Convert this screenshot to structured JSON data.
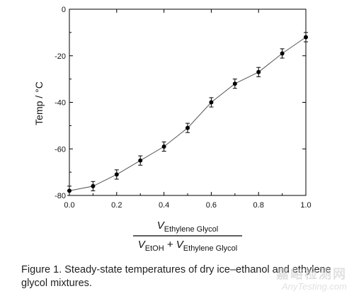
{
  "chart_data": {
    "type": "line",
    "ylabel": "Temp / °C",
    "xlabel_fraction": {
      "numerator": {
        "var": "V",
        "sub": "Ethylene Glycol"
      },
      "denominator": [
        {
          "var": "V",
          "sub": "EtOH"
        },
        {
          "op": "+"
        },
        {
          "var": "V",
          "sub": "Ethylene Glycol"
        }
      ]
    },
    "xlim": [
      0.0,
      1.0
    ],
    "ylim": [
      -80,
      0
    ],
    "xticks": [
      "0.0",
      "0.2",
      "0.4",
      "0.6",
      "0.8",
      "1.0"
    ],
    "yticks": [
      "0",
      "-20",
      "-40",
      "-60",
      "-80"
    ],
    "x": [
      0.0,
      0.1,
      0.2,
      0.3,
      0.4,
      0.5,
      0.6,
      0.7,
      0.8,
      0.9,
      1.0
    ],
    "y": [
      -78,
      -76,
      -71,
      -65,
      -59,
      -51,
      -40,
      -32,
      -27,
      -19,
      -12
    ],
    "error": [
      2,
      2,
      2,
      2,
      2,
      2,
      2,
      2,
      2,
      2,
      2
    ],
    "grid": false,
    "line_color": "#555555",
    "marker_color": "#000000"
  },
  "caption": "Figure 1. Steady-state temperatures of dry ice–ethanol and ethylene glycol mixtures.",
  "watermark": {
    "line1": "嘉峪检测网",
    "line2": "AnyTesting.com"
  }
}
